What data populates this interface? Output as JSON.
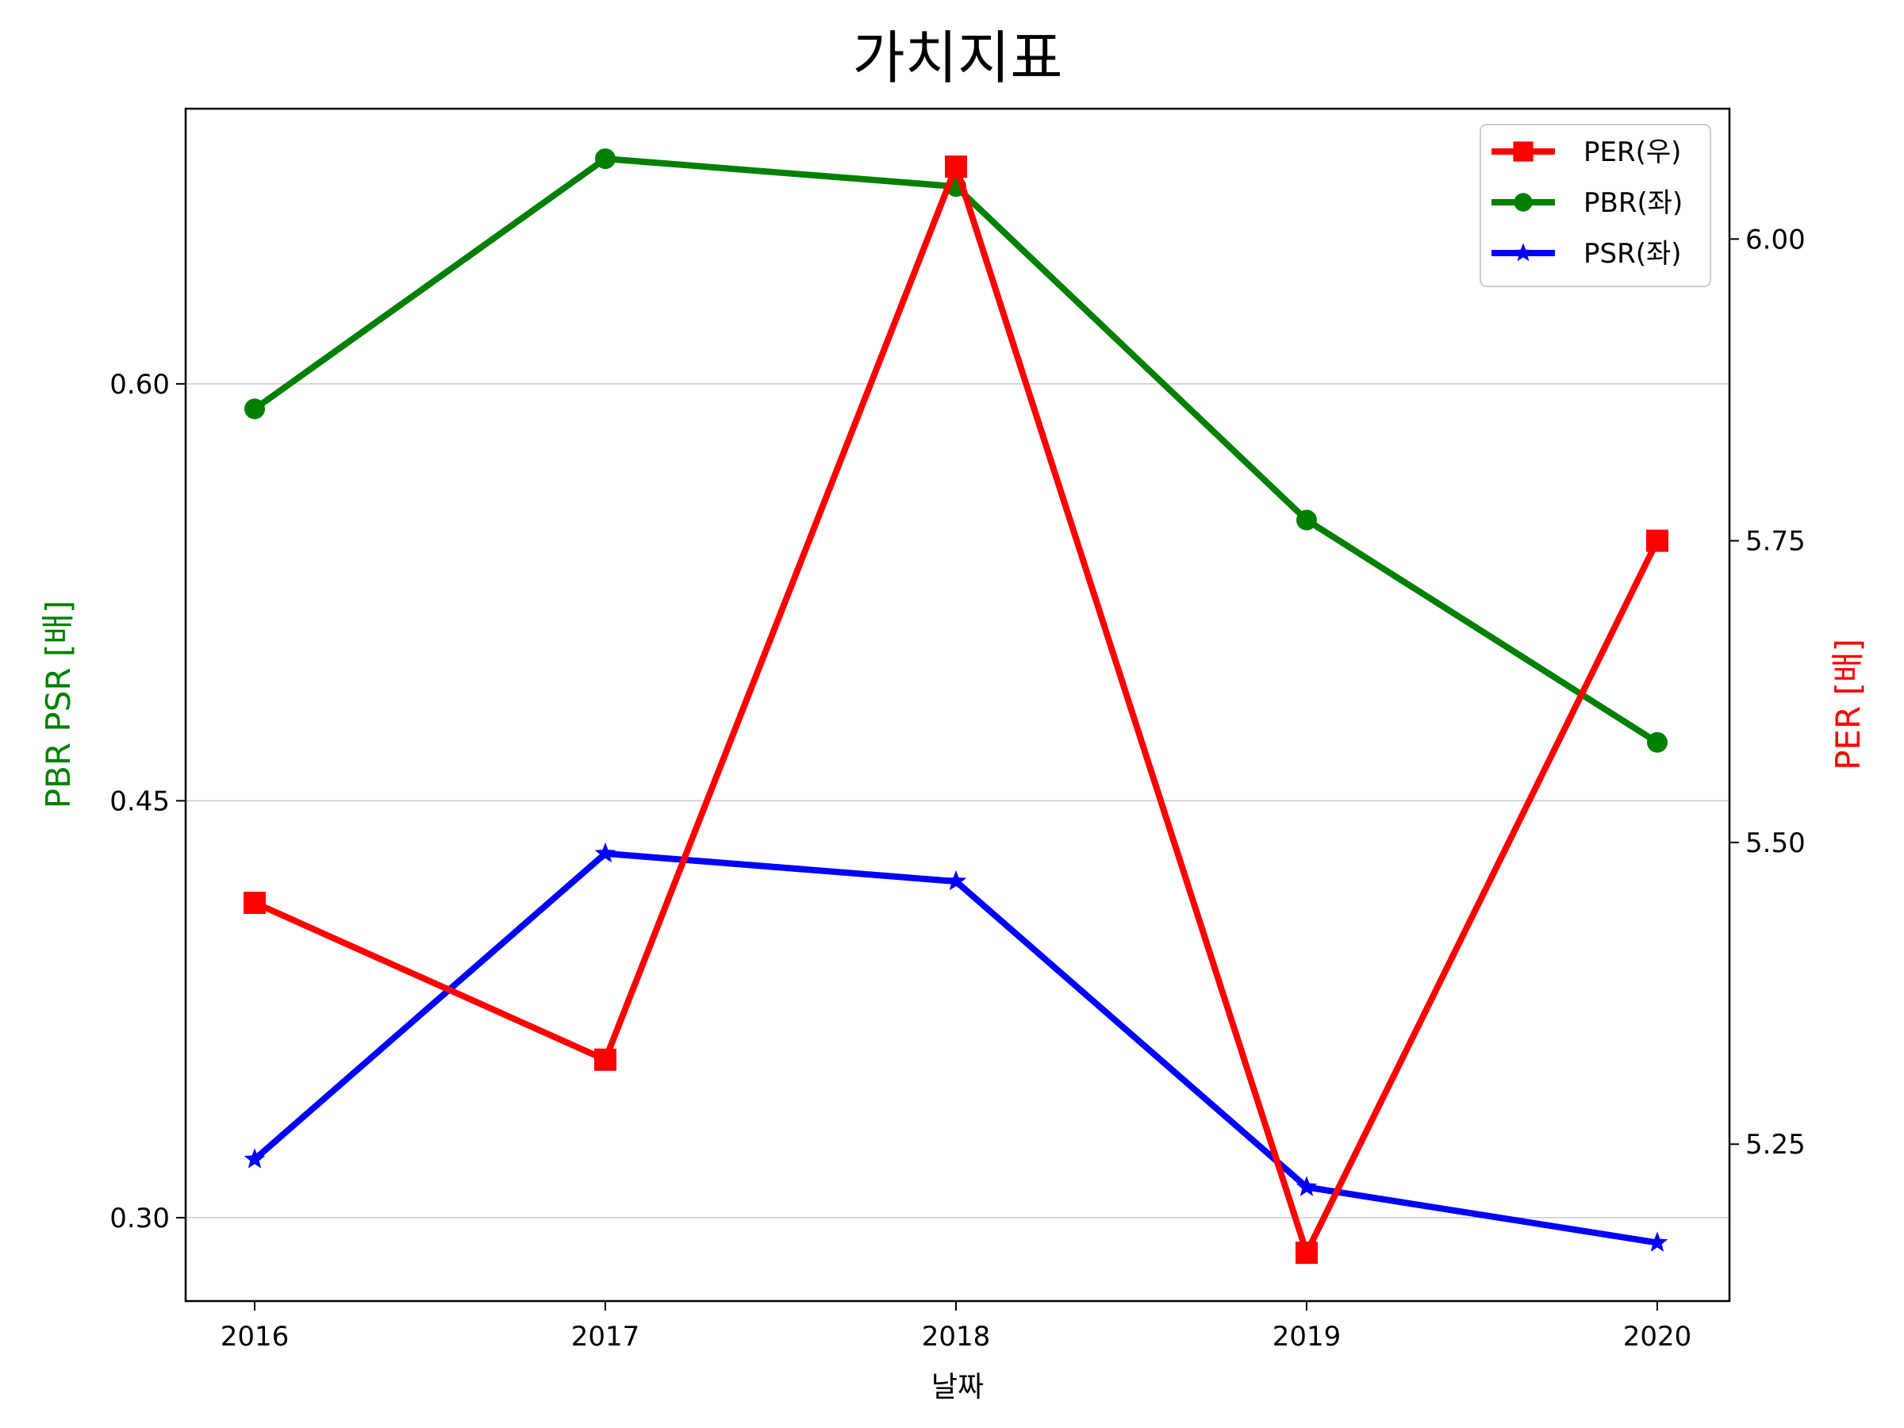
{
  "chart_data": {
    "type": "line",
    "title": "가치지표",
    "xlabel": "날짜",
    "ylabel_left": "PBR PSR [배]",
    "ylabel_right": "PER [배]",
    "categories": [
      "2016",
      "2017",
      "2018",
      "2019",
      "2020"
    ],
    "ylim_left": [
      0.27,
      0.699
    ],
    "ylim_right": [
      5.12,
      6.108
    ],
    "yticks_left": [
      "0.30",
      "0.45",
      "0.60"
    ],
    "yticks_right": [
      "5.25",
      "5.50",
      "5.75",
      "6.00"
    ],
    "grid": "horizontal lines at left-axis ticks",
    "legend_position": "top-right",
    "series": [
      {
        "name": "PER(우)",
        "axis": "right",
        "color": "#ff0000",
        "marker": "square",
        "values": [
          5.45,
          5.32,
          6.06,
          5.16,
          5.75
        ]
      },
      {
        "name": "PBR(좌)",
        "axis": "left",
        "color": "#008000",
        "marker": "circle",
        "values": [
          0.591,
          0.681,
          0.671,
          0.551,
          0.471
        ]
      },
      {
        "name": "PSR(좌)",
        "axis": "left",
        "color": "#0000ff",
        "marker": "star",
        "values": [
          0.321,
          0.431,
          0.421,
          0.311,
          0.291
        ]
      }
    ]
  }
}
